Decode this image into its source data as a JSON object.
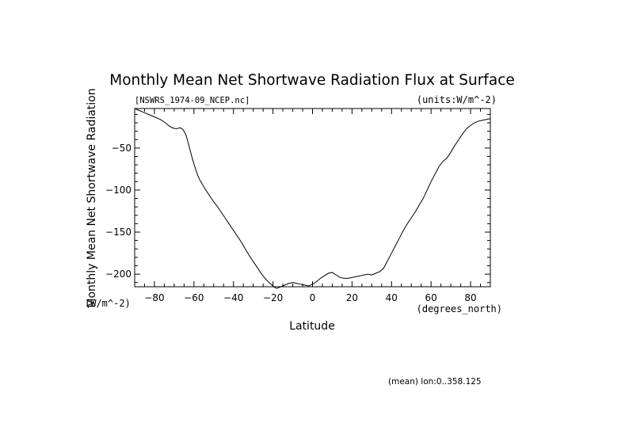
{
  "chart_data": {
    "type": "line",
    "title": "Monthly Mean Net Shortwave Radiation Flux at Surface",
    "subtitle_left": "[NSWRS_1974-09_NCEP.nc]",
    "subtitle_right": "(units:W/m^-2)",
    "xlabel": "Latitude",
    "xunits": "(degrees_north)",
    "ylabel": "Monthly Mean Net Shortwave Radiation",
    "yunits": "(W/m^-2)",
    "footnote": "(mean) lon:0..358.125",
    "xlim": [
      -90,
      90
    ],
    "ylim": [
      -215,
      -3
    ],
    "xticks": [
      -80,
      -60,
      -40,
      -20,
      0,
      20,
      40,
      60,
      80
    ],
    "yticks": [
      -50,
      -100,
      -150,
      -200
    ],
    "xtick_labels": [
      "−80",
      "−60",
      "−40",
      "−20",
      "0",
      "20",
      "40",
      "60",
      "80"
    ],
    "ytick_labels": [
      "−50",
      "−100",
      "−150",
      "−200"
    ],
    "grid": false,
    "legend": "none",
    "line_color": "#000000",
    "series": [
      {
        "x": [
          -90,
          -88,
          -85,
          -82,
          -80,
          -77,
          -75,
          -73,
          -71,
          -69,
          -67,
          -66,
          -65,
          -64,
          -63,
          -62,
          -61,
          -60,
          -59,
          -58,
          -57,
          -56,
          -55,
          -54,
          -52,
          -50,
          -48,
          -46,
          -44,
          -42,
          -40,
          -38,
          -36,
          -34,
          -32,
          -30,
          -28,
          -26,
          -24,
          -22,
          -20,
          -19,
          -18,
          -17,
          -16,
          -14,
          -12,
          -10,
          -8,
          -6,
          -4,
          -2,
          0,
          2,
          4,
          6,
          8,
          10,
          12,
          14,
          16,
          18,
          20,
          22,
          24,
          26,
          28,
          30,
          32,
          34,
          36,
          38,
          40,
          42,
          44,
          46,
          48,
          50,
          52,
          54,
          56,
          58,
          60,
          62,
          64,
          66,
          68,
          70,
          72,
          74,
          76,
          78,
          80,
          82,
          84,
          86,
          88,
          90
        ],
        "y": [
          -3,
          -5,
          -8,
          -11,
          -13,
          -16,
          -19,
          -23,
          -26,
          -27,
          -26,
          -27,
          -30,
          -35,
          -43,
          -52,
          -61,
          -69,
          -76,
          -83,
          -88,
          -92,
          -96,
          -100,
          -107,
          -114,
          -120,
          -127,
          -134,
          -141,
          -148,
          -155,
          -162,
          -170,
          -178,
          -185,
          -192,
          -199,
          -205,
          -210,
          -214,
          -216,
          -217,
          -216,
          -215,
          -213,
          -211,
          -210,
          -211,
          -212,
          -213,
          -214,
          -212,
          -209,
          -205,
          -202,
          -199,
          -198,
          -201,
          -204,
          -205,
          -205,
          -204,
          -203,
          -202,
          -201,
          -200,
          -201,
          -199,
          -197,
          -193,
          -184,
          -175,
          -166,
          -157,
          -148,
          -140,
          -133,
          -126,
          -118,
          -110,
          -100,
          -90,
          -81,
          -72,
          -66,
          -62,
          -55,
          -47,
          -40,
          -33,
          -27,
          -23,
          -20,
          -18,
          -17,
          -16,
          -15
        ]
      }
    ]
  }
}
